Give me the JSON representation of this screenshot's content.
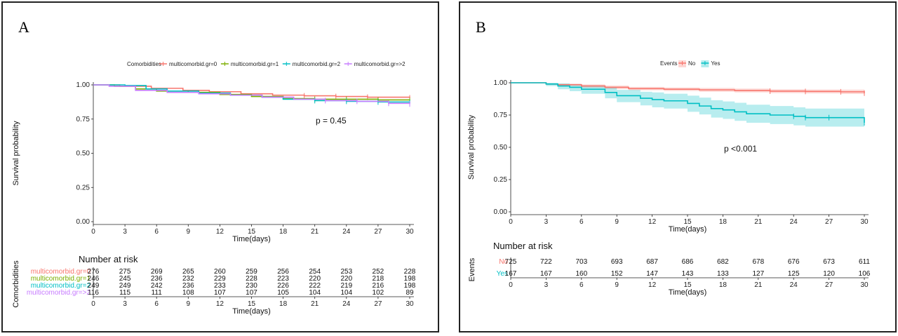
{
  "charts": [
    {
      "id": "A",
      "panel_label": "A",
      "legend_title": "Comorbidities",
      "ylabel": "Survival probability",
      "xlabel": "Time(days)",
      "pvalue": "p = 0.45",
      "risk_title": "Number at risk",
      "risk_ylabel": "Comorbidities",
      "risk_xlabel": "Time(days)",
      "colors": [
        "#F8766D",
        "#7CAE00",
        "#00BFC4",
        "#C77CFF"
      ]
    },
    {
      "id": "B",
      "panel_label": "B",
      "legend_title": "Events",
      "ylabel": "Survival probability",
      "xlabel": "Time(days)",
      "pvalue": "p <0.001",
      "risk_title": "Number at risk",
      "risk_ylabel": "Events",
      "risk_xlabel": "Time(days)",
      "colors": [
        "#F8766D",
        "#00BFC4"
      ]
    }
  ],
  "chart_data": [
    {
      "type": "line",
      "x_ticks": [
        0,
        3,
        6,
        9,
        12,
        15,
        18,
        21,
        24,
        27,
        30
      ],
      "y_ticks": [
        "0.00",
        "0.25",
        "0.50",
        "0.75",
        "1.00"
      ],
      "xlim": [
        0,
        30
      ],
      "ylim": [
        0,
        1
      ],
      "series": [
        {
          "name": "multicomorbid.gr=0",
          "x": [
            0,
            2.5,
            5.5,
            8.5,
            11,
            14,
            17,
            20,
            23,
            26,
            30
          ],
          "y": [
            1.0,
            0.99,
            0.975,
            0.96,
            0.95,
            0.935,
            0.925,
            0.92,
            0.915,
            0.91,
            0.905
          ],
          "risk": [
            "276",
            "275",
            "269",
            "265",
            "260",
            "259",
            "256",
            "254",
            "253",
            "252",
            "228"
          ]
        },
        {
          "name": "multicomorbid.gr=1",
          "x": [
            0,
            2,
            4,
            6,
            9,
            12,
            15,
            18,
            21,
            24,
            27,
            30
          ],
          "y": [
            1.0,
            0.99,
            0.97,
            0.955,
            0.945,
            0.93,
            0.915,
            0.9,
            0.895,
            0.895,
            0.89,
            0.885
          ],
          "risk": [
            "246",
            "245",
            "236",
            "232",
            "229",
            "228",
            "223",
            "220",
            "220",
            "218",
            "198"
          ]
        },
        {
          "name": "multicomorbid.gr=2",
          "x": [
            0,
            3,
            5,
            7,
            10,
            13,
            16,
            18,
            21,
            24,
            27,
            30
          ],
          "y": [
            1.0,
            0.995,
            0.97,
            0.955,
            0.94,
            0.925,
            0.91,
            0.895,
            0.885,
            0.88,
            0.875,
            0.87
          ],
          "risk": [
            "249",
            "249",
            "242",
            "236",
            "233",
            "230",
            "226",
            "222",
            "219",
            "216",
            "198"
          ]
        },
        {
          "name": "multicomorbid.gr=>2",
          "x": [
            0,
            1.5,
            4,
            7,
            10,
            13,
            16,
            19,
            22,
            25,
            28,
            30
          ],
          "y": [
            1.0,
            0.99,
            0.96,
            0.945,
            0.935,
            0.925,
            0.91,
            0.895,
            0.885,
            0.88,
            0.865,
            0.86
          ],
          "risk": [
            "116",
            "115",
            "111",
            "108",
            "107",
            "107",
            "105",
            "104",
            "104",
            "102",
            "89"
          ]
        }
      ]
    },
    {
      "type": "line",
      "x_ticks": [
        0,
        3,
        6,
        9,
        12,
        15,
        18,
        21,
        24,
        27,
        30
      ],
      "y_ticks": [
        "0.00",
        "0.25",
        "0.50",
        "0.75",
        "1.00"
      ],
      "xlim": [
        0,
        30
      ],
      "ylim": [
        0,
        1
      ],
      "series": [
        {
          "name": "No",
          "x": [
            0,
            3,
            4,
            6,
            8,
            10,
            13,
            16,
            19,
            22,
            25,
            28,
            30
          ],
          "y": [
            1.0,
            0.99,
            0.985,
            0.975,
            0.965,
            0.955,
            0.95,
            0.945,
            0.94,
            0.935,
            0.933,
            0.93,
            0.92
          ],
          "lower": [
            1.0,
            0.985,
            0.975,
            0.962,
            0.952,
            0.942,
            0.936,
            0.93,
            0.925,
            0.92,
            0.918,
            0.913,
            0.9
          ],
          "upper": [
            1.0,
            0.996,
            0.993,
            0.987,
            0.978,
            0.968,
            0.963,
            0.96,
            0.955,
            0.95,
            0.948,
            0.947,
            0.94
          ],
          "risk": [
            "725",
            "722",
            "703",
            "693",
            "687",
            "686",
            "682",
            "678",
            "676",
            "673",
            "611"
          ]
        },
        {
          "name": "Yes",
          "x": [
            0,
            3,
            4,
            5,
            6,
            8,
            9,
            11,
            12,
            13,
            15,
            16,
            17,
            18,
            19,
            20,
            22,
            24,
            25,
            27,
            30
          ],
          "y": [
            1.0,
            0.99,
            0.975,
            0.965,
            0.95,
            0.925,
            0.9,
            0.88,
            0.87,
            0.86,
            0.84,
            0.82,
            0.8,
            0.79,
            0.775,
            0.76,
            0.75,
            0.74,
            0.73,
            0.73,
            0.69
          ],
          "lower": [
            1.0,
            0.975,
            0.95,
            0.935,
            0.915,
            0.88,
            0.85,
            0.825,
            0.81,
            0.8,
            0.775,
            0.755,
            0.73,
            0.72,
            0.705,
            0.69,
            0.68,
            0.67,
            0.66,
            0.66,
            0.6
          ],
          "upper": [
            1.0,
            1.0,
            0.995,
            0.99,
            0.98,
            0.965,
            0.945,
            0.93,
            0.925,
            0.915,
            0.9,
            0.885,
            0.865,
            0.855,
            0.845,
            0.83,
            0.82,
            0.81,
            0.8,
            0.8,
            0.77
          ],
          "risk": [
            "167",
            "167",
            "160",
            "152",
            "147",
            "143",
            "133",
            "127",
            "125",
            "120",
            "106"
          ]
        }
      ]
    }
  ]
}
